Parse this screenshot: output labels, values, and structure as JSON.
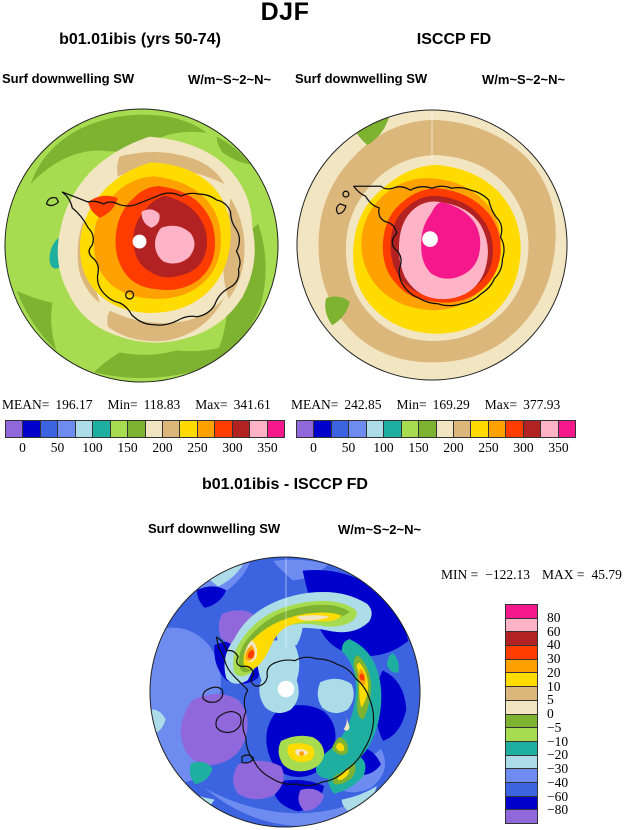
{
  "figure": {
    "season_title": "DJF"
  },
  "palette": {
    "colors": [
      "#9168DB",
      "#0000CC",
      "#3C64E1",
      "#6E8CF0",
      "#ACDCE8",
      "#1FAFA0",
      "#A8DC50",
      "#7EB231",
      "#F2E6C2",
      "#DCB77C",
      "#FFDB00",
      "#FFA100",
      "#FF3C00",
      "#B22222",
      "#FFB3C6",
      "#F5188C"
    ],
    "coastline": "#111111",
    "pole_dot": "#FFFFFF"
  },
  "top_left": {
    "title": "b01.01ibis (yrs 50-74)",
    "field": "Surf downwelling SW",
    "units": "W/m~S~2~N~",
    "mean_label": "MEAN=",
    "mean": "196.17",
    "min_label": "Min=",
    "min": "118.83",
    "max_label": "Max=",
    "max": "341.61",
    "ticks": [
      "0",
      "50",
      "100",
      "150",
      "200",
      "250",
      "300",
      "350"
    ]
  },
  "top_right": {
    "title": "ISCCP FD",
    "field": "Surf downwelling SW",
    "units": "W/m~S~2~N~",
    "mean_label": "MEAN=",
    "mean": "242.85",
    "min_label": "Min=",
    "min": "169.29",
    "max_label": "Max=",
    "max": "377.93",
    "ticks": [
      "0",
      "50",
      "100",
      "150",
      "200",
      "250",
      "300",
      "350"
    ]
  },
  "bottom": {
    "title": "b01.01ibis - ISCCP FD",
    "field": "Surf downwelling SW",
    "units": "W/m~S~2~N~",
    "min_label": "MIN =",
    "min": "−122.13",
    "max_label": "MAX =",
    "max": "45.79",
    "ticks": [
      "80",
      "60",
      "40",
      "30",
      "20",
      "10",
      "5",
      "0",
      "−5",
      "−10",
      "−20",
      "−30",
      "−40",
      "−60",
      "−80"
    ]
  },
  "chart_data": [
    {
      "type": "heatmap",
      "title": "b01.01ibis (yrs 50-74)",
      "variable": "Surf downwelling SW",
      "units": "W/m~S~2~N~ (W per square meter)",
      "season": "DJF",
      "projection": "Antarctic polar stereographic map, filled contours",
      "stats": {
        "mean": 196.17,
        "min": 118.83,
        "max": 341.61
      },
      "colorbar_ticks": [
        0,
        50,
        100,
        150,
        200,
        250,
        300,
        350
      ],
      "contour_interval": 25,
      "n_color_bins": 16,
      "legend_position": "bottom"
    },
    {
      "type": "heatmap",
      "title": "ISCCP FD",
      "variable": "Surf downwelling SW",
      "units": "W/m~S~2~N~ (W per square meter)",
      "season": "DJF",
      "projection": "Antarctic polar stereographic map, filled contours",
      "stats": {
        "mean": 242.85,
        "min": 169.29,
        "max": 377.93
      },
      "colorbar_ticks": [
        0,
        50,
        100,
        150,
        200,
        250,
        300,
        350
      ],
      "contour_interval": 25,
      "n_color_bins": 16,
      "legend_position": "bottom"
    },
    {
      "type": "heatmap",
      "title": "b01.01ibis - ISCCP FD (difference)",
      "variable": "Surf downwelling SW",
      "units": "W/m~S~2~N~ (W per square meter)",
      "season": "DJF",
      "projection": "Antarctic polar stereographic map, filled contours",
      "stats": {
        "min": -122.13,
        "max": 45.79
      },
      "colorbar_ticks": [
        80,
        60,
        40,
        30,
        20,
        10,
        5,
        0,
        -5,
        -10,
        -20,
        -30,
        -40,
        -60,
        -80
      ],
      "n_color_bins": 16,
      "legend_position": "right"
    }
  ]
}
